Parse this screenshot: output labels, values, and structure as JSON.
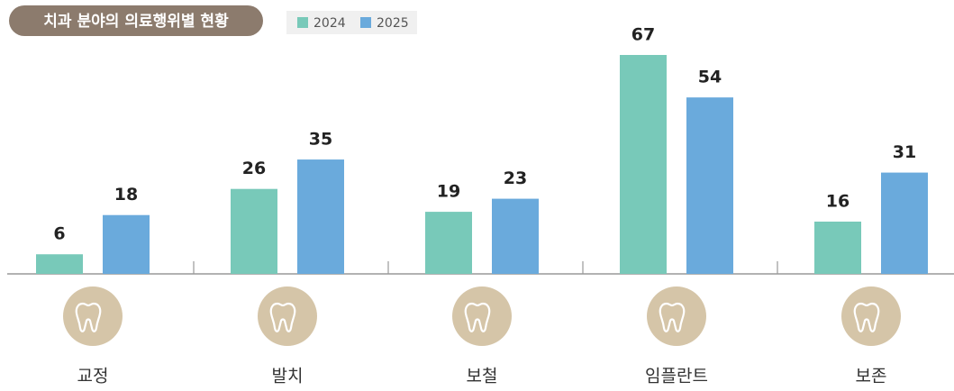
{
  "chart_data": {
    "type": "bar",
    "title": "치과 분야의 의료행위별 현황",
    "categories": [
      "교정",
      "발치",
      "보철",
      "임플란트",
      "보존"
    ],
    "series": [
      {
        "name": "2024",
        "color": "#78c9b9",
        "values": [
          6,
          26,
          19,
          67,
          16
        ]
      },
      {
        "name": "2025",
        "color": "#6aaadc",
        "values": [
          18,
          35,
          23,
          54,
          31
        ]
      }
    ]
  }
}
